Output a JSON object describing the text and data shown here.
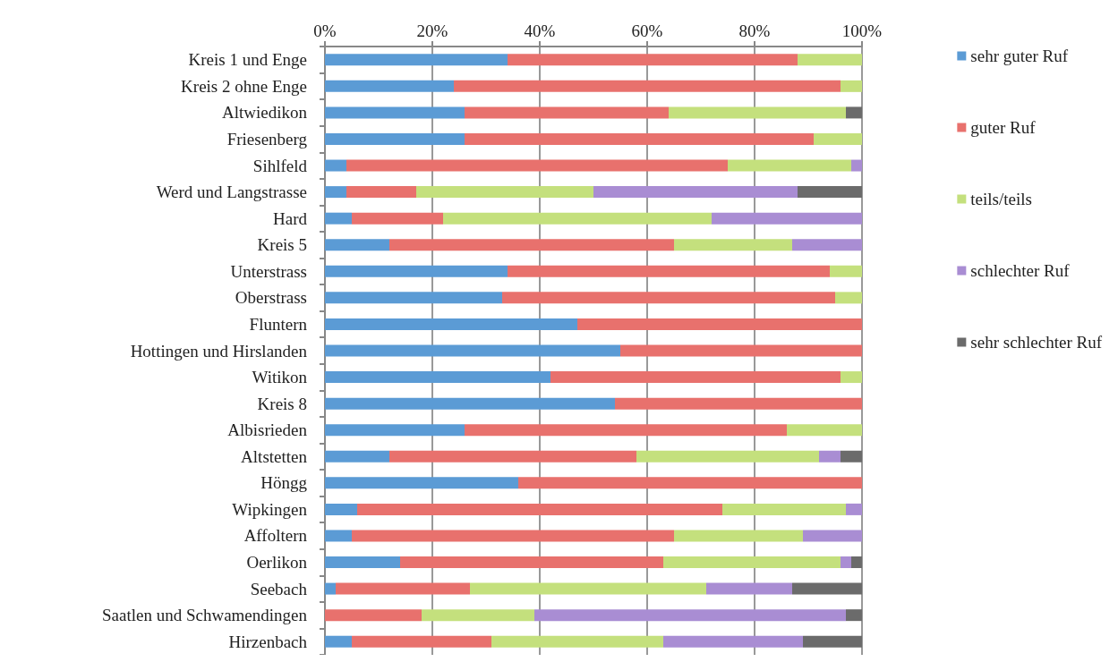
{
  "chart_data": {
    "type": "bar",
    "orientation": "horizontal",
    "stacked": true,
    "legend": "right",
    "grid": "x",
    "categories": [
      "Kreis 1 und Enge",
      "Kreis 2 ohne Enge",
      "Altwiedikon",
      "Friesenberg",
      "Sihlfeld",
      "Werd und Langstrasse",
      "Hard",
      "Kreis 5",
      "Unterstrass",
      "Oberstrass",
      "Fluntern",
      "Hottingen und Hirslanden",
      "Witikon",
      "Kreis 8",
      "Albisrieden",
      "Altstetten",
      "Höngg",
      "Wipkingen",
      "Affoltern",
      "Oerlikon",
      "Seebach",
      "Saatlen und Schwamendingen",
      "Hirzenbach"
    ],
    "xlim": [
      0,
      100
    ],
    "xticks": [
      {
        "value": 0,
        "label": "0%"
      },
      {
        "value": 20,
        "label": "20%"
      },
      {
        "value": 40,
        "label": "40%"
      },
      {
        "value": 60,
        "label": "60%"
      },
      {
        "value": 80,
        "label": "80%"
      },
      {
        "value": 100,
        "label": "100%"
      }
    ],
    "series": [
      {
        "name": "sehr guter Ruf",
        "color": "#5b9bd5",
        "values": [
          34,
          24,
          26,
          26,
          4,
          4,
          5,
          12,
          34,
          33,
          47,
          55,
          42,
          54,
          26,
          12,
          36,
          6,
          5,
          14,
          2,
          null,
          5
        ]
      },
      {
        "name": "guter Ruf",
        "color": "#e8716d",
        "values": [
          54,
          72,
          38,
          65,
          71,
          13,
          17,
          53,
          60,
          62,
          53,
          45,
          54,
          46,
          60,
          46,
          64,
          68,
          60,
          49,
          25,
          18,
          26
        ]
      },
      {
        "name": "teils/teils",
        "color": "#c4e07d",
        "values": [
          12,
          4,
          33,
          9,
          23,
          33,
          50,
          22,
          6,
          5,
          null,
          null,
          4,
          null,
          14,
          34,
          null,
          23,
          24,
          33,
          44,
          21,
          32
        ]
      },
      {
        "name": "schlechter Ruf",
        "color": "#a98dd3",
        "values": [
          null,
          null,
          null,
          null,
          2,
          38,
          28,
          13,
          null,
          null,
          null,
          null,
          null,
          null,
          null,
          4,
          null,
          3,
          11,
          2,
          16,
          58,
          26
        ]
      },
      {
        "name": "sehr schlechter Ruf",
        "color": "#6b6b6b",
        "values": [
          null,
          null,
          3,
          null,
          null,
          12,
          null,
          null,
          null,
          null,
          null,
          null,
          null,
          null,
          null,
          4,
          null,
          null,
          null,
          2,
          13,
          3,
          11
        ]
      }
    ]
  }
}
